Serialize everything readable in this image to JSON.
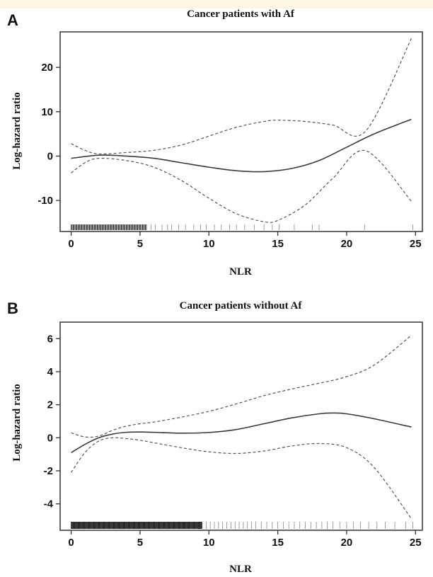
{
  "chart_data": [
    {
      "panel": "A",
      "type": "line",
      "title": "Cancer patients with Af",
      "xlabel": "NLR",
      "ylabel": "Log-hazard ratio",
      "xlim": [
        -0.8,
        25.5
      ],
      "ylim": [
        -17,
        28
      ],
      "xticks": [
        0,
        5,
        10,
        15,
        20,
        25
      ],
      "yticks": [
        -10,
        0,
        10,
        20
      ],
      "grid": false,
      "series": [
        {
          "role": "estimate",
          "style": "solid",
          "x": [
            0,
            2,
            4,
            6,
            8,
            10,
            12,
            14,
            16,
            18,
            20,
            22,
            24.7
          ],
          "y": [
            -0.5,
            0.2,
            0.0,
            -0.5,
            -1.5,
            -2.5,
            -3.3,
            -3.5,
            -2.8,
            -1.0,
            2.0,
            5.0,
            8.3
          ]
        },
        {
          "role": "upper_ci",
          "style": "dashed",
          "x": [
            0,
            1,
            2,
            4,
            6,
            8,
            10,
            12,
            14,
            15,
            17,
            19,
            21.4,
            24.7
          ],
          "y": [
            2.8,
            1.3,
            0.5,
            0.8,
            1.3,
            2.5,
            4.5,
            6.5,
            7.8,
            8.1,
            7.8,
            7.0,
            5.7,
            26.5
          ]
        },
        {
          "role": "lower_ci",
          "style": "dashed",
          "x": [
            0,
            1,
            2,
            4,
            6,
            8,
            10,
            12,
            14,
            15,
            17,
            19,
            21.4,
            24.7
          ],
          "y": [
            -3.8,
            -1.5,
            -0.5,
            -1.0,
            -2.5,
            -5.5,
            -9.5,
            -13.0,
            -14.8,
            -14.5,
            -11.0,
            -5.0,
            1.2,
            -10.2
          ]
        }
      ],
      "rug": {
        "dense_ranges": [
          [
            0,
            5.5
          ]
        ],
        "sparse_values": [
          5.8,
          6.1,
          6.6,
          7.0,
          7.3,
          7.8,
          8.3,
          8.9,
          9.4,
          9.8,
          10.4,
          10.9,
          11.5,
          12.0,
          12.6,
          13.3,
          14.0,
          14.6,
          15.1,
          16.2,
          17.5,
          18.0,
          21.3,
          24.8
        ]
      }
    },
    {
      "panel": "B",
      "type": "line",
      "title": "Cancer patients without Af",
      "xlabel": "NLR",
      "ylabel": "Log-hazard ratio",
      "xlim": [
        -0.8,
        25.5
      ],
      "ylim": [
        -5.6,
        7
      ],
      "xticks": [
        0,
        5,
        10,
        15,
        20,
        25
      ],
      "yticks": [
        -4,
        -2,
        0,
        2,
        4,
        6
      ],
      "grid": false,
      "series": [
        {
          "role": "estimate",
          "style": "solid",
          "x": [
            0,
            1,
            2,
            3,
            4,
            5,
            6,
            8,
            10,
            12,
            14,
            16,
            18,
            19,
            20,
            22,
            24.7
          ],
          "y": [
            -0.9,
            -0.4,
            0.0,
            0.22,
            0.33,
            0.35,
            0.33,
            0.28,
            0.32,
            0.5,
            0.85,
            1.2,
            1.45,
            1.5,
            1.45,
            1.15,
            0.65
          ]
        },
        {
          "role": "upper_ci",
          "style": "dashed",
          "x": [
            0,
            1,
            2,
            3,
            4,
            5,
            6,
            8,
            10,
            12,
            14,
            16,
            18,
            20,
            22,
            24.7
          ],
          "y": [
            0.3,
            0.05,
            0.1,
            0.45,
            0.7,
            0.85,
            0.95,
            1.25,
            1.6,
            2.05,
            2.55,
            2.95,
            3.3,
            3.7,
            4.4,
            6.2
          ]
        },
        {
          "role": "lower_ci",
          "style": "dashed",
          "x": [
            0,
            1,
            2,
            3,
            4,
            5,
            6,
            8,
            10,
            12,
            14,
            16,
            18,
            20,
            22,
            24.7
          ],
          "y": [
            -2.1,
            -0.9,
            -0.2,
            0.0,
            -0.05,
            -0.15,
            -0.3,
            -0.6,
            -0.85,
            -0.95,
            -0.8,
            -0.5,
            -0.35,
            -0.6,
            -1.8,
            -4.9
          ]
        }
      ],
      "rug": {
        "dense_ranges": [
          [
            0,
            9.5
          ]
        ],
        "sparse_values": [
          9.8,
          10.1,
          10.4,
          10.7,
          11.0,
          11.3,
          11.6,
          11.9,
          12.2,
          12.5,
          12.8,
          13.1,
          13.4,
          13.8,
          14.2,
          14.6,
          15.0,
          15.4,
          15.8,
          16.2,
          16.6,
          17.0,
          17.4,
          17.8,
          18.2,
          18.6,
          19.0,
          19.5,
          20.0,
          20.5,
          21.0,
          21.6,
          22.2,
          22.8,
          23.5,
          24.3,
          24.8
        ]
      }
    }
  ]
}
